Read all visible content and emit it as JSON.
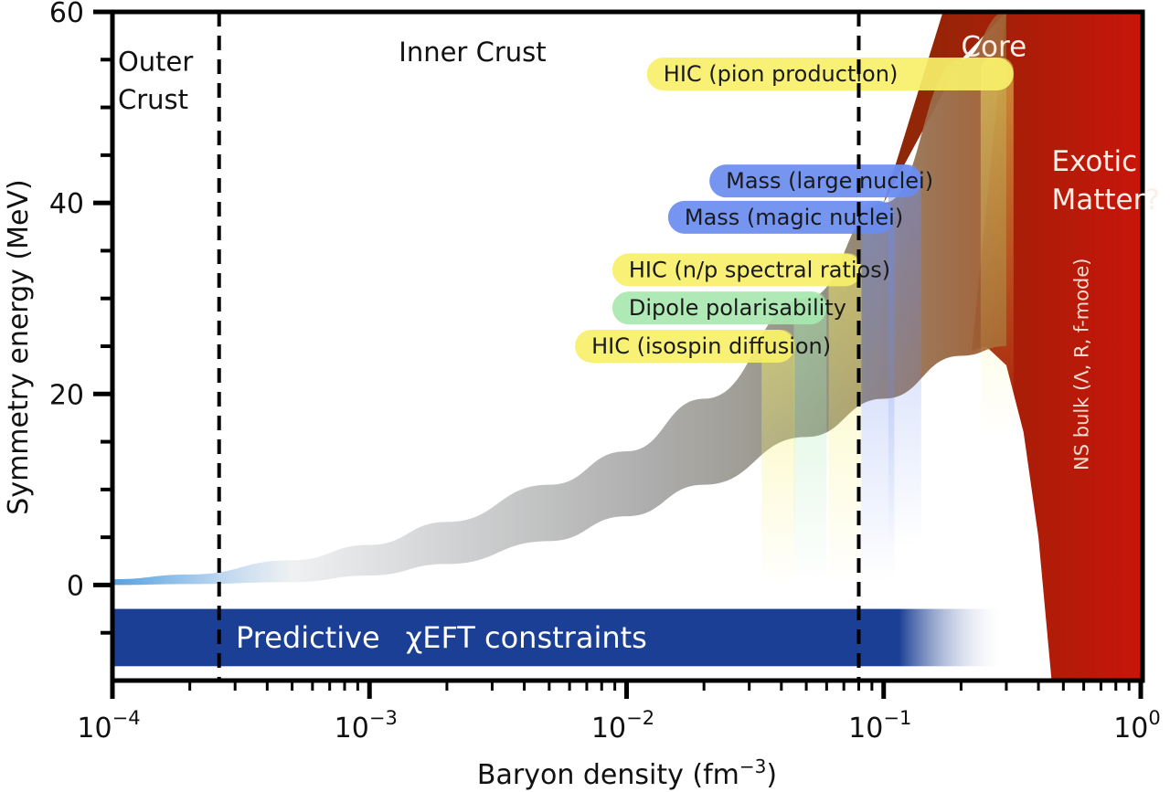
{
  "chart_data": {
    "type": "area",
    "title": "",
    "xlabel": "Baryon density (fm",
    "xlabel_exponent": "−3",
    "xlabel_close": ")",
    "ylabel": "Symmetry energy (MeV)",
    "xscale": "log",
    "xlim": [
      0.0001,
      1
    ],
    "ylim": [
      -10,
      60
    ],
    "grid": false,
    "x_ticks": [
      {
        "value": 0.0001,
        "base": "10",
        "exp": "−4"
      },
      {
        "value": 0.001,
        "base": "10",
        "exp": "−3"
      },
      {
        "value": 0.01,
        "base": "10",
        "exp": "−2"
      },
      {
        "value": 0.1,
        "base": "10",
        "exp": "−1"
      },
      {
        "value": 1,
        "base": "10",
        "exp": "0"
      }
    ],
    "y_ticks": [
      {
        "value": 0,
        "label": "0"
      },
      {
        "value": 20,
        "label": "20"
      },
      {
        "value": 40,
        "label": "40"
      },
      {
        "value": 60,
        "label": "60"
      }
    ],
    "y_minor_ticks": [
      -5,
      5,
      10,
      15,
      25,
      30,
      35,
      45,
      50,
      55
    ],
    "boundaries": [
      {
        "name": "outer-inner-crust",
        "x": 0.00026
      },
      {
        "name": "crust-core",
        "x": 0.08
      }
    ],
    "regions": [
      {
        "label_lines": [
          "Outer",
          "Crust"
        ],
        "x": 0.000105,
        "y": [
          55,
          51
        ]
      },
      {
        "label_lines": [
          "Inner Crust"
        ],
        "x": 0.0013,
        "y": [
          56
        ]
      },
      {
        "label_lines": [
          "Core"
        ],
        "x": 0.2,
        "y": [
          56.5
        ]
      },
      {
        "label_lines": [
          "Exotic",
          "Matter?"
        ],
        "x": 0.45,
        "y": [
          44.5,
          40.5
        ]
      }
    ],
    "symmetry_energy_band": {
      "description": "Symmetry energy versus baryon density band",
      "x": [
        0.0001,
        0.0002,
        0.0005,
        0.001,
        0.002,
        0.005,
        0.01,
        0.02,
        0.05,
        0.1,
        0.2,
        0.3
      ],
      "lower": [
        0.0,
        0.1,
        0.3,
        1.0,
        2.2,
        4.6,
        7.2,
        10.5,
        15.5,
        19.5,
        24.0,
        25.0
      ],
      "upper": [
        0.6,
        1.1,
        2.6,
        4.2,
        6.6,
        10.5,
        14.0,
        19.5,
        30.0,
        40.0,
        55.0,
        60.0
      ]
    },
    "ns_bulk_region": {
      "label": "NS bulk (Λ, R, f-mode)",
      "color_left": "#8a2a08",
      "color_right": "#c8150a",
      "upper_curve": {
        "x": [
          0.22,
          0.25,
          0.3,
          0.35,
          0.4,
          0.45
        ],
        "y": [
          24.5,
          25.0,
          23.0,
          16.0,
          5.0,
          -10.0
        ]
      }
    },
    "constraints": [
      {
        "label": "HIC (pion production)",
        "color": "#f7f06a",
        "x_range": [
          0.012,
          0.32
        ],
        "y": 53.5
      },
      {
        "label": "Mass (large nuclei)",
        "color": "#6a8cf0",
        "x_range": [
          0.021,
          0.14
        ],
        "y": 42.3
      },
      {
        "label": "Mass (magic nuclei)",
        "color": "#6a8cf0",
        "x_range": [
          0.0145,
          0.11
        ],
        "y": 38.5
      },
      {
        "label": "HIC (n/p spectral ratios)",
        "color": "#f7f06a",
        "x_range": [
          0.0088,
          0.082
        ],
        "y": 33.0
      },
      {
        "label": "Dipole polarisability",
        "color": "#a8e8b0",
        "x_range": [
          0.0088,
          0.06
        ],
        "y": 29.0
      },
      {
        "label": "HIC (isospin diffusion)",
        "color": "#f7f06a",
        "x_range": [
          0.0063,
          0.045
        ],
        "y": 25.0
      }
    ],
    "chiEFT_band": {
      "label_part1": "Predictive",
      "label_part2": "χEFT constraints",
      "color": "#1b3f94",
      "x_range": [
        0.0001,
        0.3
      ],
      "y_range": [
        -8.5,
        -2.5
      ]
    }
  }
}
